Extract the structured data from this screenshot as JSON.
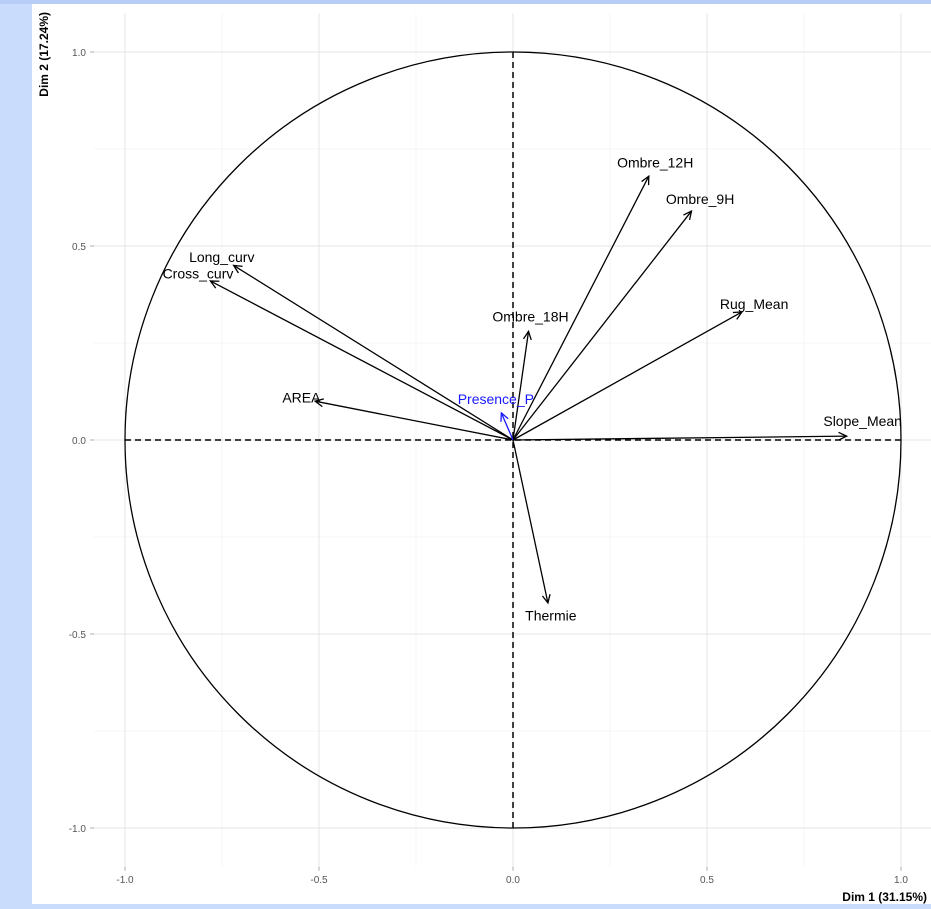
{
  "chart_data": {
    "type": "scatter",
    "subtype": "pca-variable-correlation-circle",
    "xlabel": "Dim 1 (31.15%)",
    "ylabel": "Dim 2 (17.24%)",
    "xlim": [
      -1.0,
      1.0
    ],
    "ylim": [
      -1.0,
      1.0
    ],
    "x_ticks": [
      "-1.0",
      "-0.5",
      "0.0",
      "0.5",
      "1.0"
    ],
    "y_ticks": [
      "1.0",
      "0.5",
      "0.0",
      "-0.5",
      "-1.0"
    ],
    "x_tick_values": [
      -1.0,
      -0.5,
      0.0,
      0.5,
      1.0
    ],
    "y_tick_values": [
      1.0,
      0.5,
      0.0,
      -0.5,
      -1.0
    ],
    "grid": true,
    "unit_circle": true,
    "variables": [
      {
        "name": "Ombre_12H",
        "x": 0.35,
        "y": 0.68,
        "color": "#000000"
      },
      {
        "name": "Ombre_9H",
        "x": 0.46,
        "y": 0.59,
        "color": "#000000"
      },
      {
        "name": "Long_curv",
        "x": -0.72,
        "y": 0.45,
        "color": "#000000"
      },
      {
        "name": "Cross_curv",
        "x": -0.78,
        "y": 0.41,
        "color": "#000000"
      },
      {
        "name": "Rug_Mean",
        "x": 0.59,
        "y": 0.33,
        "color": "#000000"
      },
      {
        "name": "Ombre_18H",
        "x": 0.04,
        "y": 0.28,
        "color": "#000000"
      },
      {
        "name": "AREA",
        "x": -0.51,
        "y": 0.1,
        "color": "#000000"
      },
      {
        "name": "Presence_P",
        "x": -0.03,
        "y": 0.07,
        "color": "#1a1aff"
      },
      {
        "name": "Slope_Mean",
        "x": 0.86,
        "y": 0.01,
        "color": "#000000"
      },
      {
        "name": "Thermie",
        "x": 0.09,
        "y": -0.42,
        "color": "#000000"
      }
    ]
  }
}
